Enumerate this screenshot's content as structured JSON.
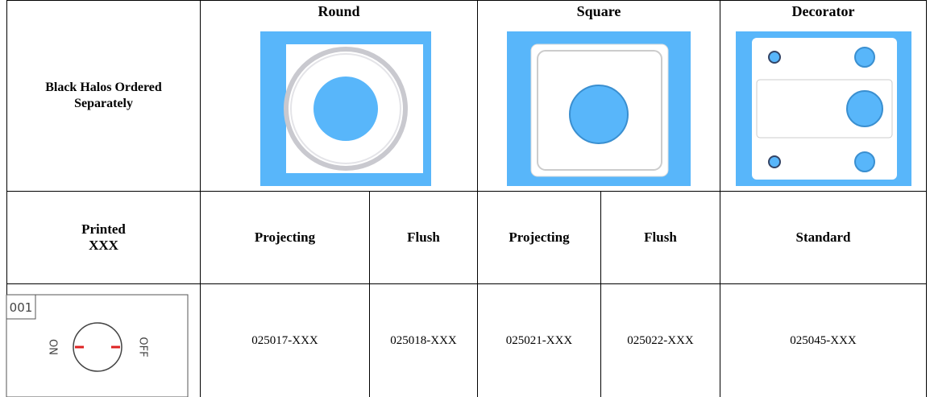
{
  "header": {
    "label": "Black Halos Ordered Separately",
    "groups": [
      "Round",
      "Square",
      "Decorator"
    ]
  },
  "subheader": {
    "label": [
      "Printed",
      "XXX"
    ],
    "styles": [
      "Projecting",
      "Flush",
      "Projecting",
      "Flush",
      "Standard"
    ]
  },
  "legend": {
    "code": "001",
    "on": "ON",
    "off": "OFF"
  },
  "parts": [
    "025017-XXX",
    "025018-XXX",
    "025021-XXX",
    "025022-XXX",
    "025045-XXX"
  ]
}
